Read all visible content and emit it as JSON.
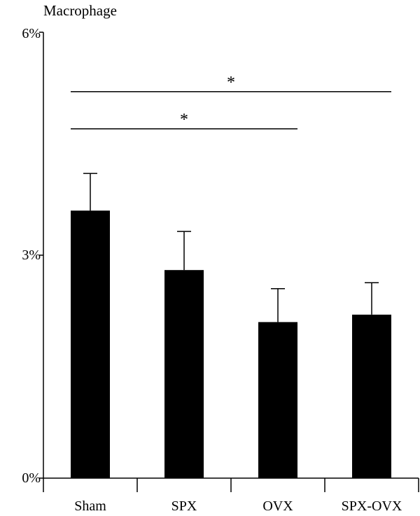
{
  "chart_data": {
    "type": "bar",
    "ylabel": "Macrophage",
    "categories": [
      "Sham",
      "SPX",
      "OVX",
      "SPX-OVX"
    ],
    "values": [
      3.6,
      2.8,
      2.1,
      2.2
    ],
    "errors": [
      0.5,
      0.52,
      0.45,
      0.43
    ],
    "ylim": [
      0,
      6
    ],
    "yticks": [
      0,
      3,
      6
    ],
    "ytick_labels": [
      "0%",
      "3%",
      "6%"
    ],
    "bar_color": "#000000",
    "grid": false,
    "significance": [
      {
        "from": 0,
        "to": 3,
        "y": 5.2,
        "label": "*"
      },
      {
        "from": 0,
        "to": 2,
        "y": 4.7,
        "label": "*"
      }
    ]
  }
}
